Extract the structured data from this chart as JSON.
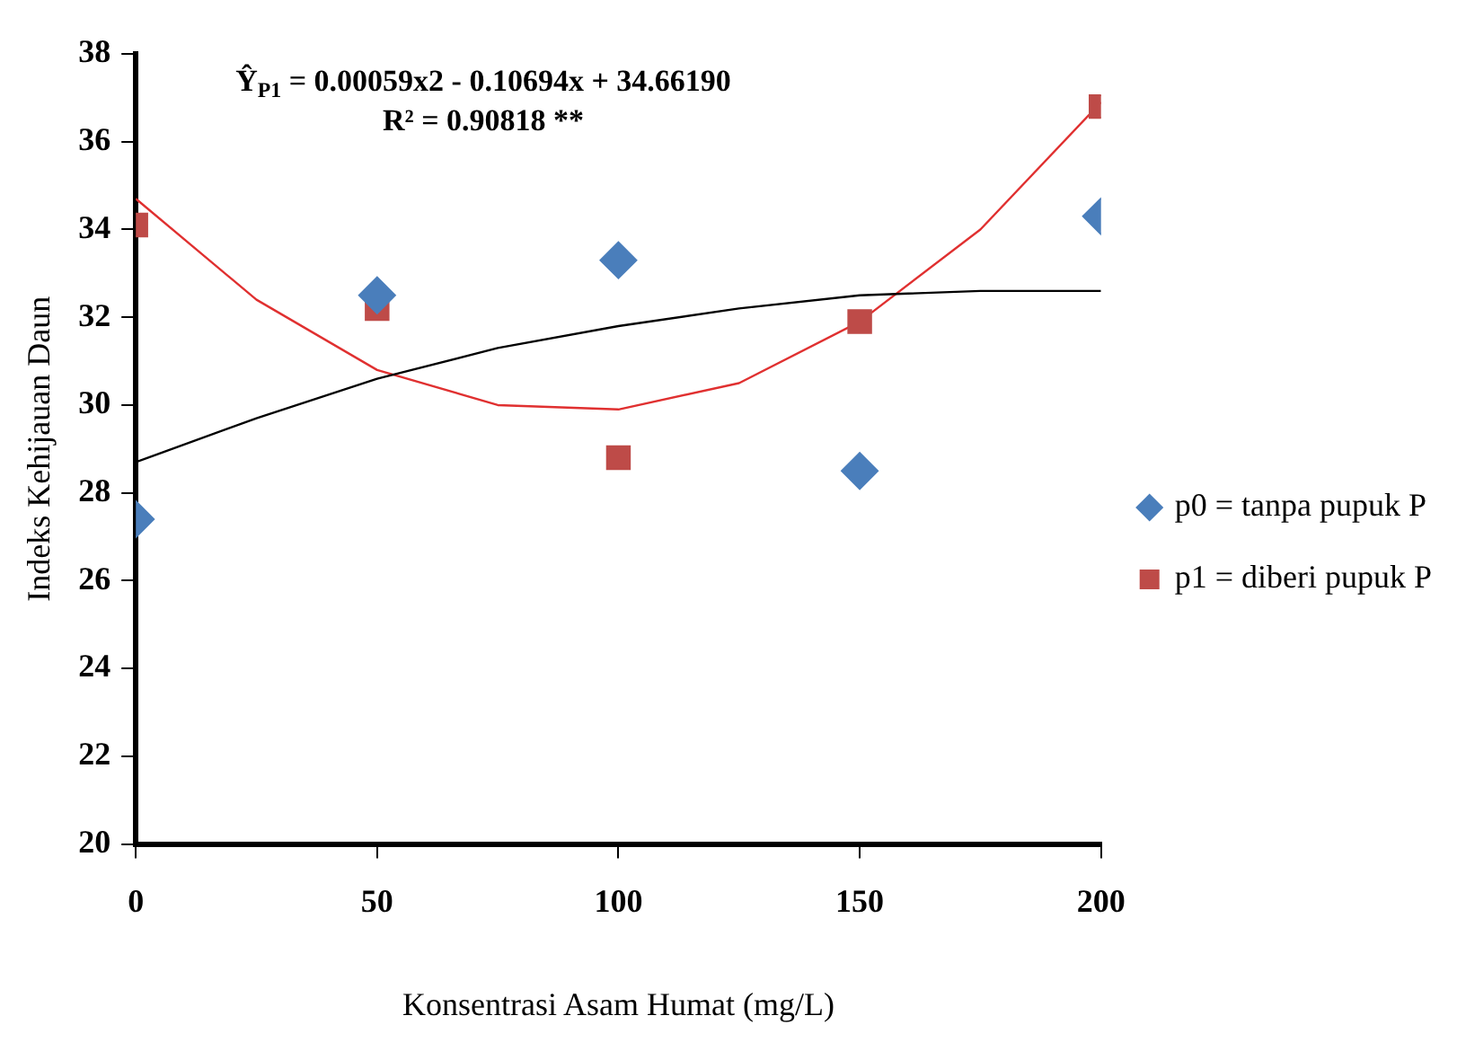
{
  "chart_data": {
    "type": "scatter",
    "xlabel": "Konsentrasi Asam Humat (mg/L)",
    "ylabel": "Indeks Kehijauan Daun",
    "annotations": [
      "Ŷ$_{P1}$ = 0.00059x2 - 0.10694x + 34.66190",
      "R² = 0.90818 **"
    ],
    "xlim": [
      0,
      200
    ],
    "xticks": [
      0,
      50,
      100,
      150,
      200
    ],
    "ylim": [
      20,
      38
    ],
    "yticks": [
      20,
      22,
      24,
      26,
      28,
      30,
      32,
      34,
      36,
      38
    ],
    "grid": false,
    "legend": "right",
    "series": [
      {
        "name": "p0 = tanpa pupuk P",
        "color": "#4a7ebb",
        "marker": "diamond",
        "x": [
          0,
          50,
          100,
          150,
          200
        ],
        "values": [
          27.4,
          32.5,
          33.3,
          28.5,
          34.3
        ]
      },
      {
        "name": "p1 = diberi pupuk P",
        "color": "#be4b48",
        "marker": "square",
        "x": [
          0,
          50,
          100,
          150,
          200
        ],
        "values": [
          34.1,
          32.2,
          28.8,
          31.9,
          36.8
        ]
      },
      {
        "type": "line",
        "color": "#000000",
        "marker": "none",
        "x": [
          0,
          25,
          50,
          75,
          100,
          125,
          150,
          175,
          200
        ],
        "values": [
          28.7,
          29.7,
          30.6,
          31.3,
          31.8,
          32.2,
          32.5,
          32.6,
          32.6
        ]
      },
      {
        "type": "line",
        "color": "#e03030",
        "marker": "none",
        "x": [
          0,
          25,
          50,
          75,
          100,
          125,
          150,
          175,
          200
        ],
        "values": [
          34.7,
          32.4,
          30.8,
          30.0,
          29.9,
          30.5,
          31.9,
          34.0,
          36.9
        ]
      }
    ]
  }
}
